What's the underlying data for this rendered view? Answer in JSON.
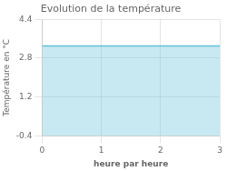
{
  "chart_data": {
    "type": "area",
    "title": "Evolution de la température",
    "xlabel": "heure par heure",
    "ylabel": "Température en °C",
    "x": [
      0,
      3
    ],
    "values": [
      3.3,
      3.3
    ],
    "color": "#62c0d8",
    "xlim": [
      0,
      3
    ],
    "ylim": [
      -0.4,
      4.4
    ],
    "xticks": [
      0,
      1,
      2,
      3
    ],
    "yticks": [
      -0.4,
      1.2,
      2.8,
      4.4
    ],
    "grid": true
  }
}
